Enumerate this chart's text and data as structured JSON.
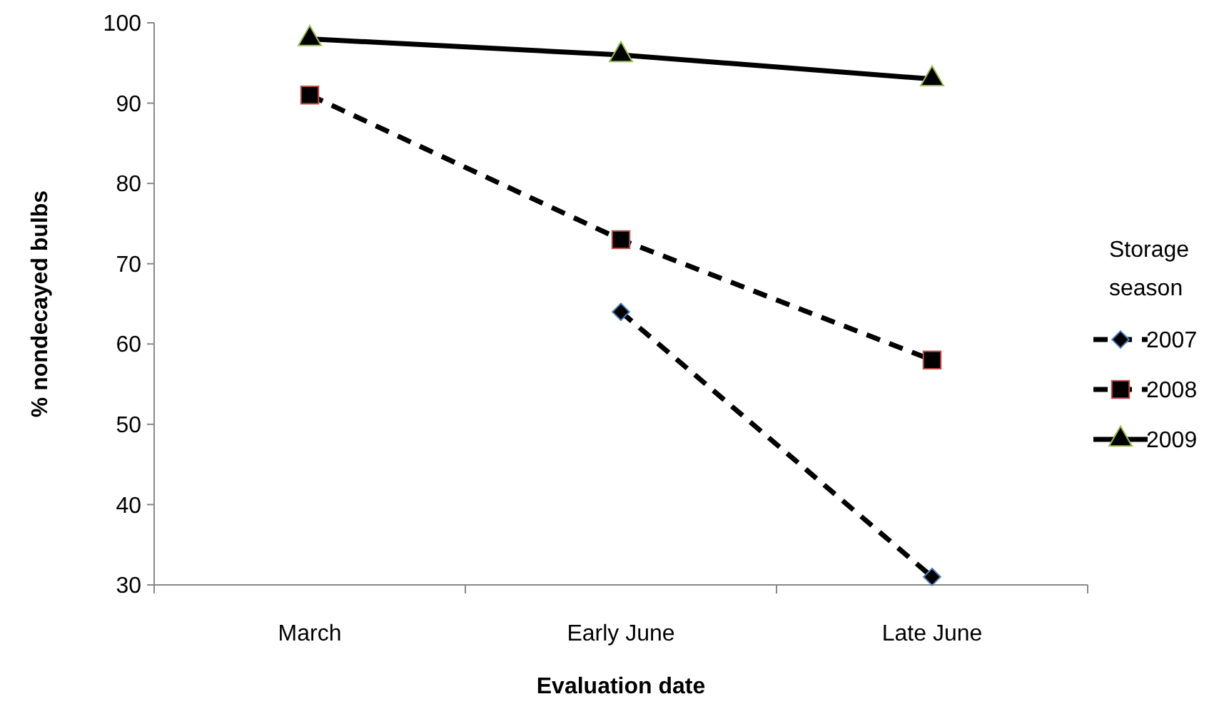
{
  "chart_data": {
    "type": "line",
    "xlabel": "Evaluation date",
    "ylabel": "% nondecayed bulbs",
    "legend_title": "Storage season",
    "categories": [
      "March",
      "Early June",
      "Late June"
    ],
    "series": [
      {
        "name": "2007",
        "color": "#000000",
        "values": [
          null,
          64,
          31
        ],
        "marker": "diamond",
        "line_style": "dashed"
      },
      {
        "name": "2008",
        "color": "#000000",
        "values": [
          91,
          73,
          58
        ],
        "marker": "square",
        "line_style": "dashed"
      },
      {
        "name": "2009",
        "color": "#000000",
        "values": [
          98,
          96,
          93
        ],
        "marker": "triangle",
        "line_style": "solid"
      }
    ],
    "ylim": [
      30,
      100
    ],
    "yticks": [
      30,
      40,
      50,
      60,
      70,
      80,
      90,
      100
    ],
    "grid": false,
    "legend": "right"
  }
}
